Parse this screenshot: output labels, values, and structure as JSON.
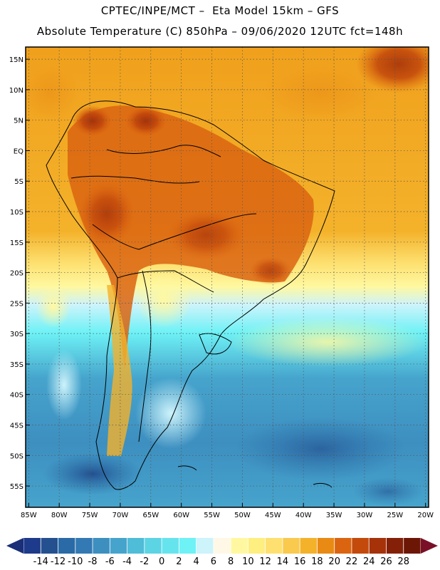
{
  "header": {
    "line1": "CPTEC/INPE/MCT –  Eta Model 15km – GFS",
    "line2": "Absolute Temperature (C) 850hPa – 09/06/2020 12UTC fct=148h"
  },
  "map": {
    "lon_labels": [
      "85W",
      "80W",
      "75W",
      "70W",
      "65W",
      "60W",
      "55W",
      "50W",
      "45W",
      "40W",
      "35W",
      "30W",
      "25W",
      "20W"
    ],
    "lat_labels": [
      "15N",
      "10N",
      "5N",
      "EQ",
      "5S",
      "10S",
      "15S",
      "20S",
      "25S",
      "30S",
      "35S",
      "40S",
      "45S",
      "50S",
      "55S"
    ],
    "lon_range": [
      -85.5,
      -19.5
    ],
    "lat_range": [
      17.0,
      -58.5
    ],
    "grid": true,
    "gridline_style": "dotted"
  },
  "colorbar": {
    "labels": [
      "-14",
      "-12",
      "-10",
      "-8",
      "-6",
      "-4",
      "-2",
      "0",
      "2",
      "4",
      "6",
      "8",
      "10",
      "12",
      "14",
      "16",
      "18",
      "20",
      "22",
      "24",
      "26",
      "28"
    ],
    "colors": [
      "#1e3a8a",
      "#24508f",
      "#2a6aa6",
      "#3379b3",
      "#3d8fc0",
      "#46a4cc",
      "#4fbcd8",
      "#5cd4e4",
      "#66e4ee",
      "#6ef2f6",
      "#cdf3fb",
      "#fff8e6",
      "#fff8a0",
      "#ffee80",
      "#fde070",
      "#f9ca4e",
      "#f4b22a",
      "#e88a14",
      "#db6410",
      "#c44a0c",
      "#a6320a",
      "#842008",
      "#6c1606"
    ],
    "extend": "both"
  }
}
